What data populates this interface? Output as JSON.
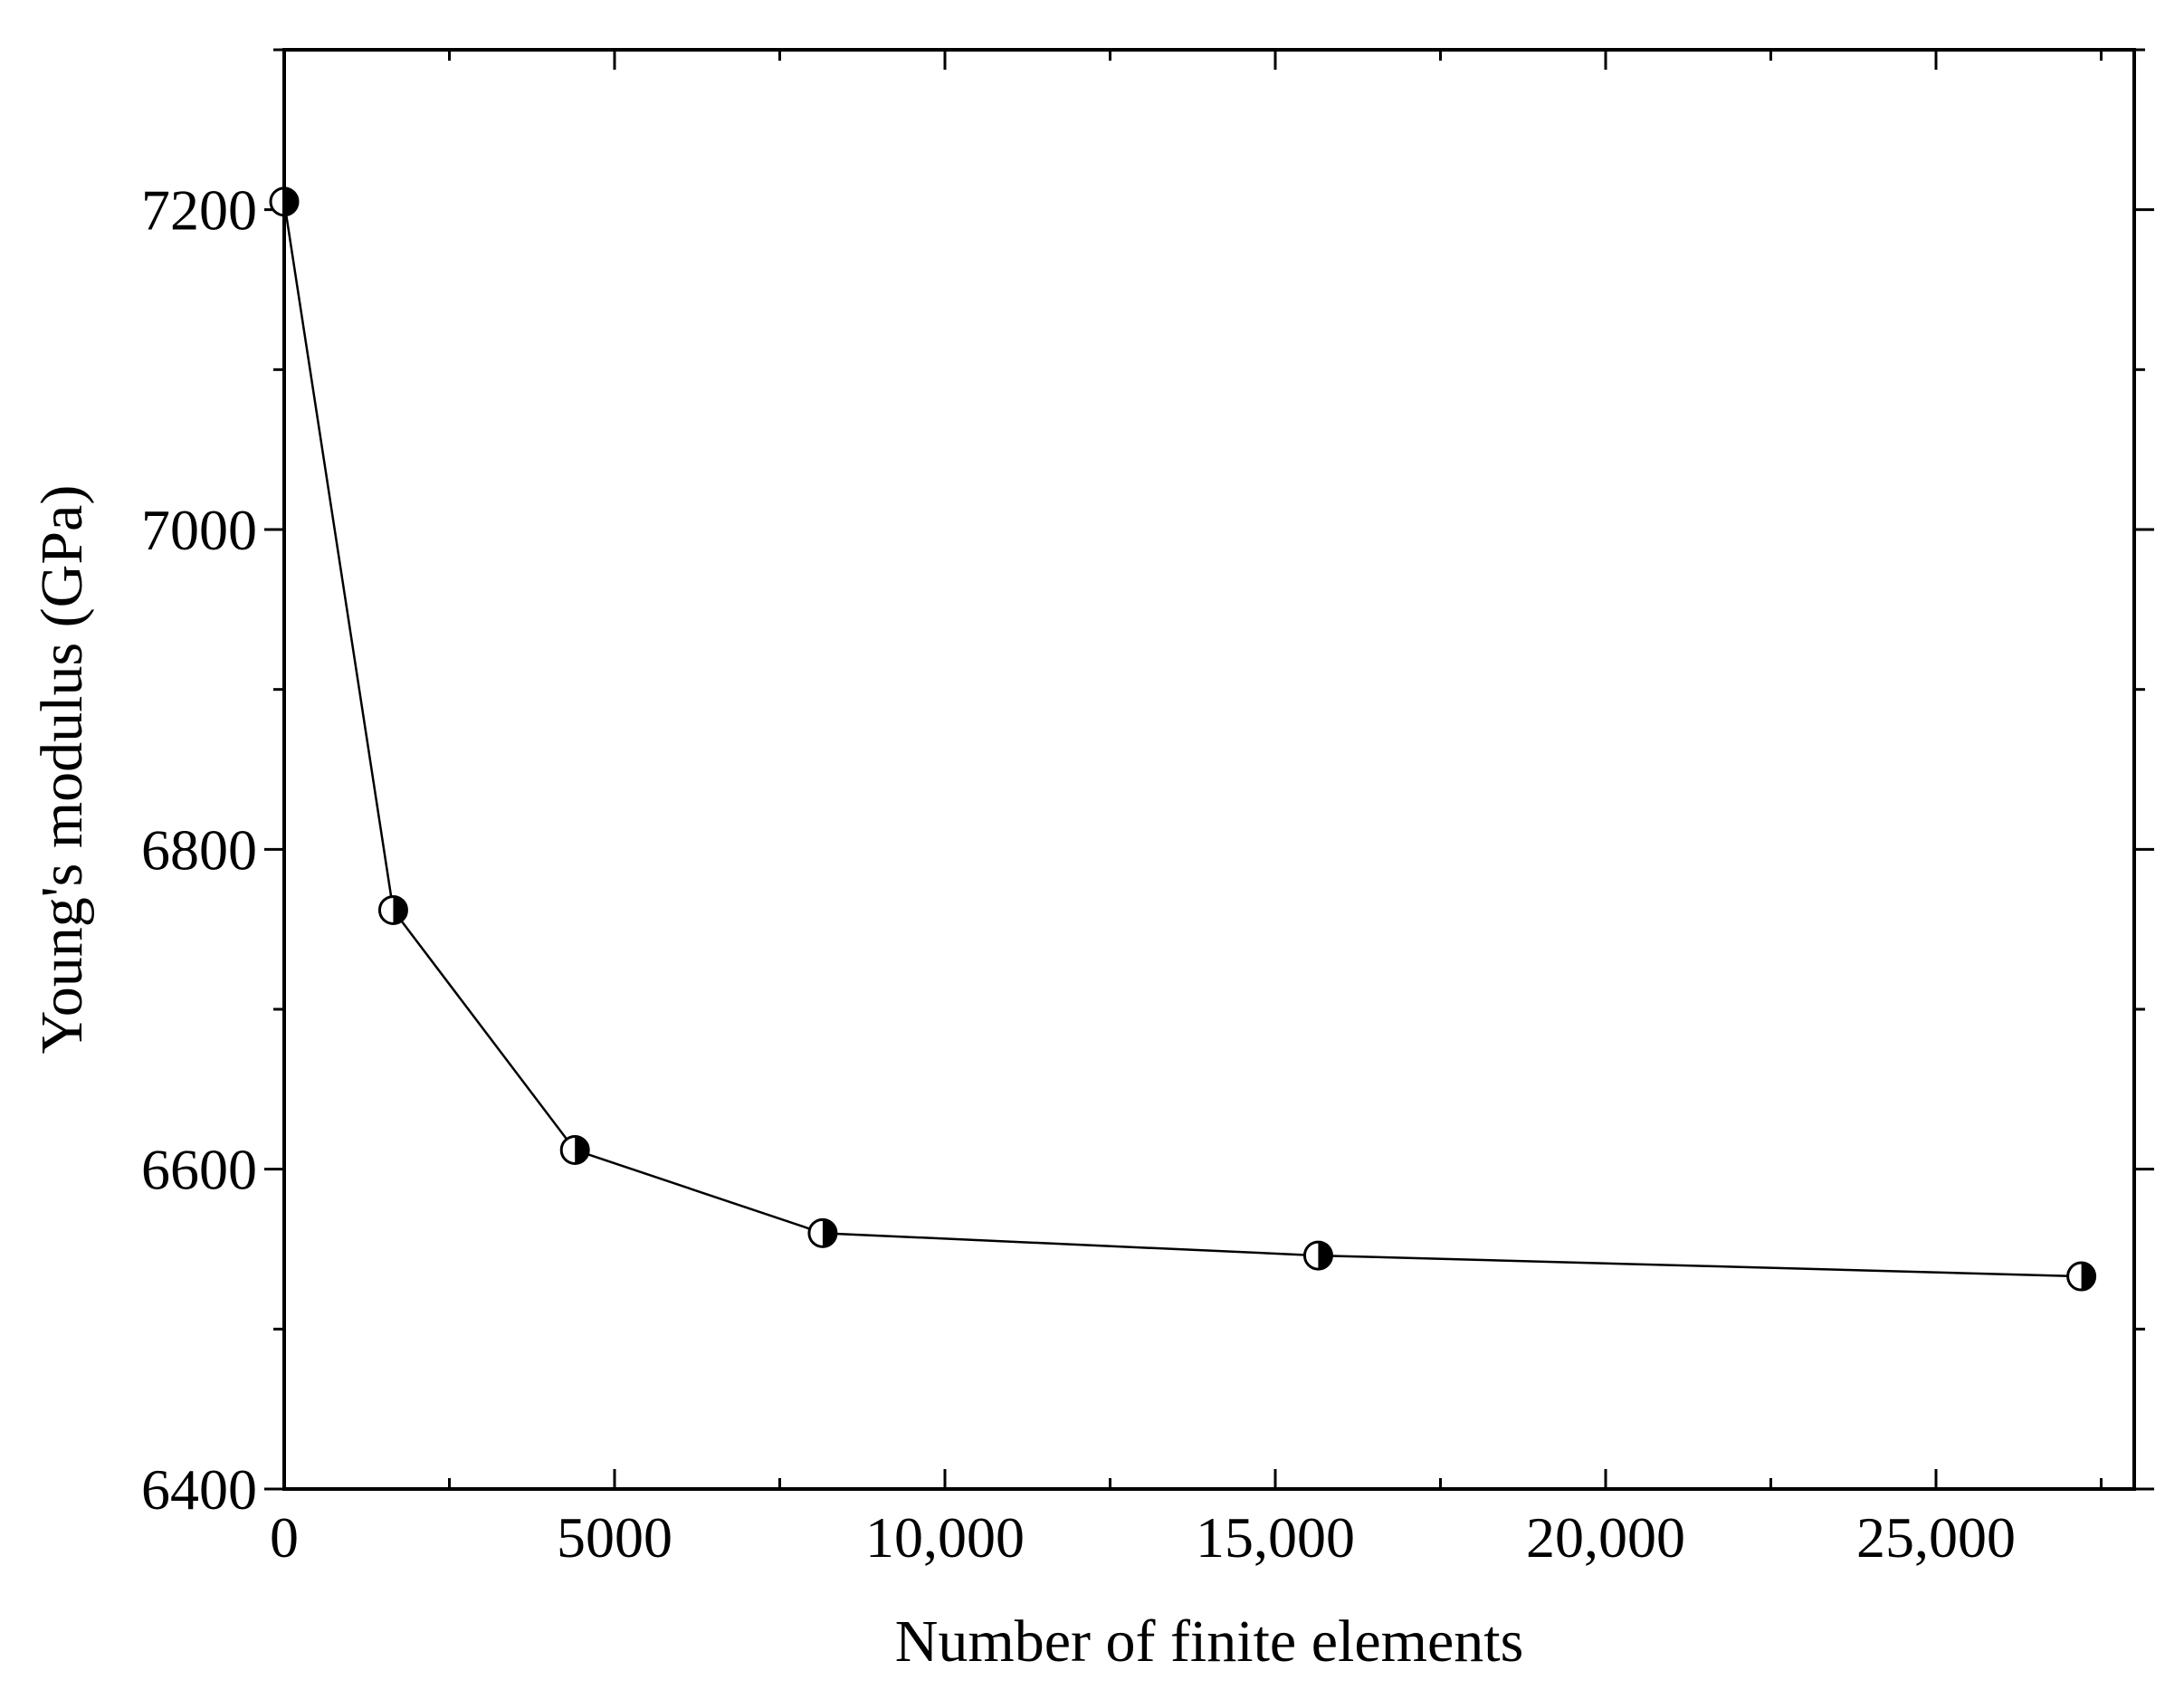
{
  "chart_data": {
    "type": "line",
    "title": "",
    "xlabel": "Number of  finite elements",
    "ylabel": "Young's modulus (GPa)",
    "xlim": [
      0,
      28000
    ],
    "ylim": [
      6400,
      7300
    ],
    "x_ticks": [
      {
        "value": 0,
        "label": "0"
      },
      {
        "value": 5000,
        "label": "5000"
      },
      {
        "value": 10000,
        "label": "10,000"
      },
      {
        "value": 15000,
        "label": "15,000"
      },
      {
        "value": 20000,
        "label": "20,000"
      },
      {
        "value": 25000,
        "label": "25,000"
      }
    ],
    "y_ticks": [
      {
        "value": 6400,
        "label": "6400"
      },
      {
        "value": 6600,
        "label": "6600"
      },
      {
        "value": 6800,
        "label": "6800"
      },
      {
        "value": 7000,
        "label": "7000"
      },
      {
        "value": 7200,
        "label": "7200"
      }
    ],
    "x_minor_step": 2500,
    "y_minor_step": 100,
    "grid": false,
    "legend": "none",
    "marker": "half-filled-circle",
    "line_color": "#000000",
    "series": [
      {
        "x": [
          0,
          1650,
          4400,
          8150,
          15650,
          27200
        ],
        "y": [
          7205,
          6762,
          6612,
          6560,
          6546,
          6533
        ]
      }
    ]
  }
}
